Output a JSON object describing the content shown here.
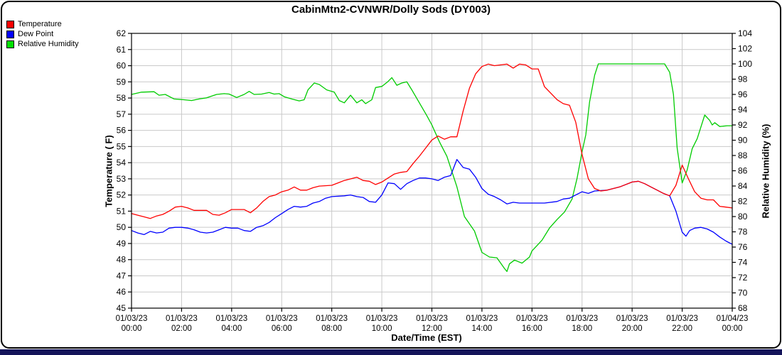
{
  "title": "CabinMtn2-CVNWR/Dolly Sods (DY003)",
  "colors": {
    "temperature": "#ff0000",
    "dew_point": "#0000ff",
    "humidity": "#00cc00",
    "grid": "#c9c9c9",
    "frame": "#000000",
    "bottom_strip": "#14145a"
  },
  "legend": [
    {
      "label": "Temperature",
      "color": "#ff0000"
    },
    {
      "label": "Dew Point",
      "color": "#0000ff"
    },
    {
      "label": "Relative Humidity",
      "color": "#00e000"
    }
  ],
  "chart_data": {
    "type": "line",
    "title": "CabinMtn2-CVNWR/Dolly Sods (DY003)",
    "xlabel": "Date/Time (EST)",
    "grid": true,
    "legend_position": "top-left",
    "y_left": {
      "label": "Temperature ( F)",
      "min": 45,
      "max": 62,
      "step": 1
    },
    "y_right": {
      "label": "Relative Humidity (%)",
      "min": 68,
      "max": 104,
      "step": 2
    },
    "x_axis": {
      "min_hour": 0,
      "max_hour": 24,
      "tick_interval_hours": 2,
      "tick_labels": [
        {
          "date": "01/03/23",
          "time": "00:00"
        },
        {
          "date": "01/03/23",
          "time": "02:00"
        },
        {
          "date": "01/03/23",
          "time": "04:00"
        },
        {
          "date": "01/03/23",
          "time": "06:00"
        },
        {
          "date": "01/03/23",
          "time": "08:00"
        },
        {
          "date": "01/03/23",
          "time": "10:00"
        },
        {
          "date": "01/03/23",
          "time": "12:00"
        },
        {
          "date": "01/03/23",
          "time": "14:00"
        },
        {
          "date": "01/03/23",
          "time": "16:00"
        },
        {
          "date": "01/03/23",
          "time": "18:00"
        },
        {
          "date": "01/03/23",
          "time": "20:00"
        },
        {
          "date": "01/03/23",
          "time": "22:00"
        },
        {
          "date": "01/04/23",
          "time": "00:00"
        }
      ]
    },
    "series": [
      {
        "name": "Relative Humidity",
        "axis": "right",
        "color": "#00cc00",
        "points": [
          [
            0,
            96.0
          ],
          [
            0.4,
            96.3
          ],
          [
            0.9,
            96.35
          ],
          [
            1.1,
            95.9
          ],
          [
            1.35,
            96.0
          ],
          [
            1.7,
            95.4
          ],
          [
            2.1,
            95.3
          ],
          [
            2.4,
            95.2
          ],
          [
            2.7,
            95.4
          ],
          [
            3,
            95.55
          ],
          [
            3.4,
            96.0
          ],
          [
            3.7,
            96.1
          ],
          [
            3.9,
            96.05
          ],
          [
            4.2,
            95.6
          ],
          [
            4.5,
            96.0
          ],
          [
            4.7,
            96.4
          ],
          [
            4.9,
            96.0
          ],
          [
            5.2,
            96.05
          ],
          [
            5.5,
            96.25
          ],
          [
            5.7,
            96.05
          ],
          [
            5.9,
            96.1
          ],
          [
            6.1,
            95.7
          ],
          [
            6.4,
            95.4
          ],
          [
            6.7,
            95.15
          ],
          [
            6.9,
            95.3
          ],
          [
            7.05,
            96.6
          ],
          [
            7.3,
            97.5
          ],
          [
            7.5,
            97.3
          ],
          [
            7.8,
            96.6
          ],
          [
            8.1,
            96.3
          ],
          [
            8.3,
            95.2
          ],
          [
            8.5,
            94.9
          ],
          [
            8.75,
            95.9
          ],
          [
            9,
            94.9
          ],
          [
            9.2,
            95.3
          ],
          [
            9.35,
            94.8
          ],
          [
            9.6,
            95.3
          ],
          [
            9.75,
            96.9
          ],
          [
            10,
            97.05
          ],
          [
            10.25,
            97.7
          ],
          [
            10.4,
            98.2
          ],
          [
            10.6,
            97.2
          ],
          [
            10.8,
            97.5
          ],
          [
            11,
            97.65
          ],
          [
            11.2,
            96.6
          ],
          [
            11.5,
            94.9
          ],
          [
            11.8,
            93.2
          ],
          [
            12,
            92.0
          ],
          [
            12.3,
            89.8
          ],
          [
            12.6,
            87.9
          ],
          [
            13,
            83.9
          ],
          [
            13.3,
            80.0
          ],
          [
            13.7,
            78.1
          ],
          [
            14,
            75.3
          ],
          [
            14.3,
            74.7
          ],
          [
            14.6,
            74.6
          ],
          [
            14.9,
            73.2
          ],
          [
            15,
            72.8
          ],
          [
            15.1,
            73.8
          ],
          [
            15.3,
            74.3
          ],
          [
            15.6,
            73.9
          ],
          [
            15.9,
            74.7
          ],
          [
            16,
            75.5
          ],
          [
            16.4,
            76.9
          ],
          [
            16.7,
            78.5
          ],
          [
            17,
            79.6
          ],
          [
            17.3,
            80.6
          ],
          [
            17.6,
            82.3
          ],
          [
            17.8,
            85.0
          ],
          [
            18,
            88.5
          ],
          [
            18.15,
            90.7
          ],
          [
            18.3,
            95.0
          ],
          [
            18.5,
            98.5
          ],
          [
            18.65,
            100.0
          ],
          [
            21.3,
            100.0
          ],
          [
            21.5,
            98.9
          ],
          [
            21.65,
            96.0
          ],
          [
            21.8,
            89.0
          ],
          [
            22,
            84.4
          ],
          [
            22.2,
            86.1
          ],
          [
            22.4,
            88.9
          ],
          [
            22.6,
            90.2
          ],
          [
            22.9,
            93.3
          ],
          [
            23.1,
            92.6
          ],
          [
            23.2,
            92.0
          ],
          [
            23.3,
            92.3
          ],
          [
            23.5,
            91.8
          ],
          [
            23.8,
            91.9
          ],
          [
            24,
            91.9
          ]
        ]
      },
      {
        "name": "Dew Point",
        "axis": "left",
        "color": "#0000ff",
        "points": [
          [
            0,
            49.8
          ],
          [
            0.25,
            49.65
          ],
          [
            0.5,
            49.55
          ],
          [
            0.75,
            49.75
          ],
          [
            1,
            49.65
          ],
          [
            1.25,
            49.7
          ],
          [
            1.5,
            49.95
          ],
          [
            1.75,
            50.0
          ],
          [
            2,
            50.0
          ],
          [
            2.25,
            49.95
          ],
          [
            2.5,
            49.85
          ],
          [
            2.75,
            49.7
          ],
          [
            3,
            49.65
          ],
          [
            3.25,
            49.7
          ],
          [
            3.5,
            49.85
          ],
          [
            3.75,
            50.0
          ],
          [
            4,
            49.95
          ],
          [
            4.25,
            49.95
          ],
          [
            4.5,
            49.8
          ],
          [
            4.75,
            49.75
          ],
          [
            5,
            50.0
          ],
          [
            5.25,
            50.1
          ],
          [
            5.5,
            50.3
          ],
          [
            5.75,
            50.6
          ],
          [
            6,
            50.85
          ],
          [
            6.25,
            51.1
          ],
          [
            6.5,
            51.3
          ],
          [
            6.75,
            51.25
          ],
          [
            7,
            51.3
          ],
          [
            7.25,
            51.5
          ],
          [
            7.5,
            51.6
          ],
          [
            7.75,
            51.8
          ],
          [
            8,
            51.9
          ],
          [
            8.5,
            51.95
          ],
          [
            8.75,
            52.0
          ],
          [
            9,
            51.9
          ],
          [
            9.25,
            51.85
          ],
          [
            9.5,
            51.6
          ],
          [
            9.75,
            51.55
          ],
          [
            10,
            52.0
          ],
          [
            10.25,
            52.75
          ],
          [
            10.5,
            52.7
          ],
          [
            10.75,
            52.35
          ],
          [
            11,
            52.7
          ],
          [
            11.25,
            52.9
          ],
          [
            11.5,
            53.05
          ],
          [
            11.75,
            53.05
          ],
          [
            12,
            53.0
          ],
          [
            12.25,
            52.9
          ],
          [
            12.5,
            53.1
          ],
          [
            12.75,
            53.2
          ],
          [
            13,
            54.2
          ],
          [
            13.25,
            53.7
          ],
          [
            13.5,
            53.6
          ],
          [
            13.75,
            53.1
          ],
          [
            14,
            52.4
          ],
          [
            14.25,
            52.05
          ],
          [
            14.5,
            51.9
          ],
          [
            14.75,
            51.7
          ],
          [
            15,
            51.45
          ],
          [
            15.25,
            51.55
          ],
          [
            15.5,
            51.5
          ],
          [
            16,
            51.5
          ],
          [
            16.5,
            51.5
          ],
          [
            17,
            51.6
          ],
          [
            17.25,
            51.75
          ],
          [
            17.5,
            51.8
          ],
          [
            17.75,
            52.0
          ],
          [
            18,
            52.2
          ],
          [
            18.25,
            52.1
          ],
          [
            18.5,
            52.25
          ],
          [
            19,
            52.3
          ],
          [
            19.5,
            52.5
          ],
          [
            20,
            52.8
          ],
          [
            20.25,
            52.85
          ],
          [
            20.5,
            52.7
          ],
          [
            20.75,
            52.5
          ],
          [
            21,
            52.3
          ],
          [
            21.25,
            52.1
          ],
          [
            21.5,
            51.95
          ],
          [
            21.75,
            51.0
          ],
          [
            22,
            49.7
          ],
          [
            22.15,
            49.45
          ],
          [
            22.3,
            49.8
          ],
          [
            22.5,
            49.95
          ],
          [
            22.75,
            50.0
          ],
          [
            23,
            49.9
          ],
          [
            23.25,
            49.7
          ],
          [
            23.5,
            49.4
          ],
          [
            23.75,
            49.15
          ],
          [
            24,
            48.95
          ]
        ]
      },
      {
        "name": "Temperature",
        "axis": "left",
        "color": "#ff0000",
        "points": [
          [
            0,
            50.85
          ],
          [
            0.25,
            50.75
          ],
          [
            0.5,
            50.65
          ],
          [
            0.75,
            50.55
          ],
          [
            1,
            50.7
          ],
          [
            1.25,
            50.8
          ],
          [
            1.5,
            51.0
          ],
          [
            1.75,
            51.25
          ],
          [
            2,
            51.3
          ],
          [
            2.25,
            51.2
          ],
          [
            2.5,
            51.05
          ],
          [
            3,
            51.05
          ],
          [
            3.25,
            50.8
          ],
          [
            3.5,
            50.75
          ],
          [
            3.75,
            50.9
          ],
          [
            4,
            51.1
          ],
          [
            4.5,
            51.1
          ],
          [
            4.75,
            50.9
          ],
          [
            5,
            51.2
          ],
          [
            5.25,
            51.6
          ],
          [
            5.5,
            51.9
          ],
          [
            5.75,
            52.0
          ],
          [
            6,
            52.2
          ],
          [
            6.25,
            52.3
          ],
          [
            6.5,
            52.5
          ],
          [
            6.75,
            52.3
          ],
          [
            7,
            52.3
          ],
          [
            7.25,
            52.45
          ],
          [
            7.5,
            52.55
          ],
          [
            8,
            52.6
          ],
          [
            8.25,
            52.75
          ],
          [
            8.5,
            52.9
          ],
          [
            9,
            53.1
          ],
          [
            9.25,
            52.9
          ],
          [
            9.5,
            52.85
          ],
          [
            9.75,
            52.65
          ],
          [
            10,
            52.8
          ],
          [
            10.25,
            53.05
          ],
          [
            10.5,
            53.3
          ],
          [
            10.75,
            53.4
          ],
          [
            11,
            53.45
          ],
          [
            11.25,
            53.95
          ],
          [
            11.5,
            54.4
          ],
          [
            11.75,
            54.9
          ],
          [
            12,
            55.4
          ],
          [
            12.25,
            55.65
          ],
          [
            12.5,
            55.45
          ],
          [
            12.75,
            55.6
          ],
          [
            13,
            55.6
          ],
          [
            13.25,
            57.2
          ],
          [
            13.5,
            58.6
          ],
          [
            13.75,
            59.5
          ],
          [
            14,
            59.95
          ],
          [
            14.25,
            60.1
          ],
          [
            14.5,
            60.0
          ],
          [
            14.75,
            60.05
          ],
          [
            15,
            60.1
          ],
          [
            15.25,
            59.85
          ],
          [
            15.5,
            60.1
          ],
          [
            15.75,
            60.05
          ],
          [
            16,
            59.8
          ],
          [
            16.25,
            59.8
          ],
          [
            16.5,
            58.7
          ],
          [
            16.75,
            58.3
          ],
          [
            17,
            57.9
          ],
          [
            17.25,
            57.65
          ],
          [
            17.5,
            57.55
          ],
          [
            17.75,
            56.5
          ],
          [
            18,
            54.5
          ],
          [
            18.25,
            53.0
          ],
          [
            18.5,
            52.4
          ],
          [
            18.75,
            52.25
          ],
          [
            19,
            52.3
          ],
          [
            19.5,
            52.5
          ],
          [
            20,
            52.8
          ],
          [
            20.25,
            52.85
          ],
          [
            20.5,
            52.7
          ],
          [
            20.75,
            52.5
          ],
          [
            21,
            52.3
          ],
          [
            21.25,
            52.1
          ],
          [
            21.5,
            51.95
          ],
          [
            21.75,
            52.6
          ],
          [
            22,
            53.85
          ],
          [
            22.25,
            53.0
          ],
          [
            22.5,
            52.2
          ],
          [
            22.75,
            51.8
          ],
          [
            23,
            51.7
          ],
          [
            23.25,
            51.7
          ],
          [
            23.5,
            51.3
          ],
          [
            23.75,
            51.25
          ],
          [
            24,
            51.2
          ]
        ]
      }
    ]
  }
}
